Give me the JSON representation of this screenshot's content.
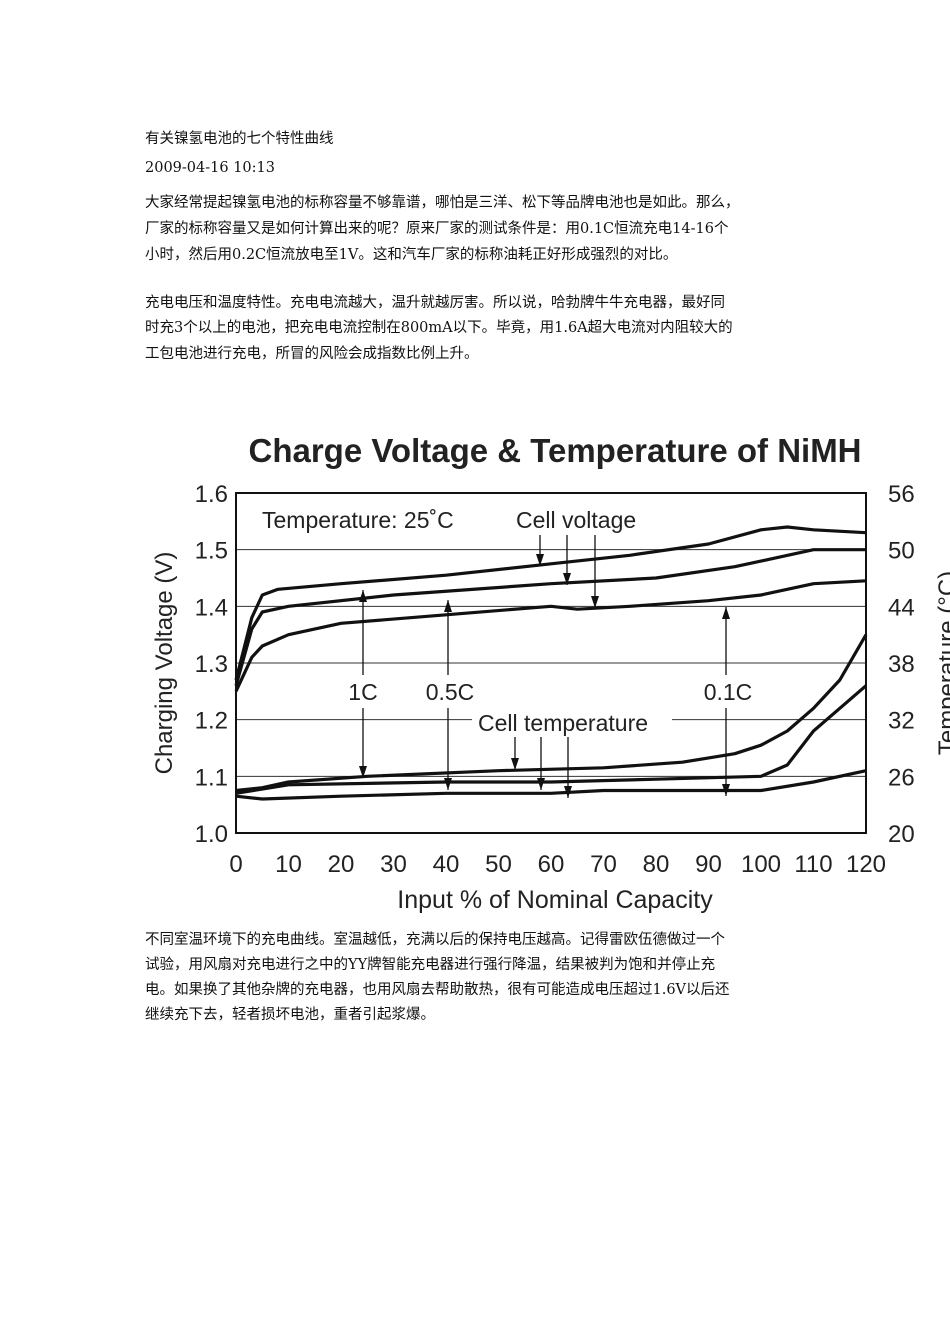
{
  "article": {
    "title": "有关镍氢电池的七个特性曲线",
    "date": "2009-04-16 10:13",
    "paragraph1": [
      "大家经常提起镍氢电池的标称容量不够靠谱，哪怕是三洋、松下等品牌电池也是如此。那么，",
      "厂家的标称容量又是如何计算出来的呢？原来厂家的测试条件是：用0.1C恒流充电14-16个",
      "小时，然后用0.2C恒流放电至1V。这和汽车厂家的标称油耗正好形成强烈的对比。"
    ],
    "paragraph2": [
      "充电电压和温度特性。充电电流越大，温升就越厉害。所以说，哈勃牌牛牛充电器，最好同",
      "时充3个以上的电池，把充电电流控制在800mA以下。毕竟，用1.6A超大电流对内阻较大的",
      "工包电池进行充电，所冒的风险会成指数比例上升。"
    ],
    "paragraph3": [
      "不同室温环境下的充电曲线。室温越低，充满以后的保持电压越高。记得雷欧伍德做过一个",
      "试验，用风扇对充电进行之中的YY牌智能充电器进行强行降温，结果被判为饱和并停止充",
      "电。如果换了其他杂牌的充电器，也用风扇去帮助散热，很有可能造成电压超过1.6V以后还",
      "继续充下去，轻者损坏电池，重者引起浆爆。"
    ]
  },
  "chart_data": {
    "type": "line",
    "title": "Charge Voltage & Temperature of NiMH",
    "xlabel": "Input % of Nominal Capacity",
    "ylabel": "Charging Voltage (V)",
    "y2label": "Temperature (°C)",
    "xlim": [
      0,
      120
    ],
    "ylim": [
      1.0,
      1.6
    ],
    "y2lim": [
      20,
      56
    ],
    "xticks": [
      "0",
      "10",
      "20",
      "30",
      "40",
      "50",
      "60",
      "70",
      "80",
      "90",
      "100",
      "110",
      "120"
    ],
    "yticks": [
      "1.0",
      "1.1",
      "1.2",
      "1.3",
      "1.4",
      "1.5",
      "1.6"
    ],
    "y2ticks": [
      "20",
      "26",
      "32",
      "38",
      "44",
      "50",
      "56"
    ],
    "grid": "horizontal",
    "annotations": {
      "condition": "Temperature: 25˚C",
      "cell_voltage": "Cell voltage",
      "cell_temperature": "Cell temperature",
      "rate_1c": "1C",
      "rate_05c": "0.5C",
      "rate_01c": "0.1C"
    },
    "voltage_series": [
      {
        "rate": "1C",
        "x": [
          0,
          3,
          5,
          8,
          20,
          40,
          60,
          75,
          90,
          100,
          105,
          110,
          120
        ],
        "y": [
          1.27,
          1.38,
          1.42,
          1.43,
          1.44,
          1.455,
          1.475,
          1.49,
          1.51,
          1.535,
          1.54,
          1.535,
          1.53
        ]
      },
      {
        "rate": "0.5C",
        "x": [
          0,
          3,
          5,
          10,
          30,
          60,
          80,
          95,
          110,
          120
        ],
        "y": [
          1.26,
          1.36,
          1.39,
          1.4,
          1.42,
          1.44,
          1.45,
          1.47,
          1.5,
          1.5
        ]
      },
      {
        "rate": "0.1C",
        "x": [
          0,
          3,
          5,
          10,
          20,
          40,
          60,
          65,
          75,
          90,
          100,
          110,
          120
        ],
        "y": [
          1.25,
          1.31,
          1.33,
          1.35,
          1.37,
          1.385,
          1.4,
          1.395,
          1.4,
          1.41,
          1.42,
          1.44,
          1.445
        ]
      }
    ],
    "temperature_series": [
      {
        "rate": "1C",
        "x": [
          0,
          5,
          10,
          25,
          50,
          70,
          85,
          95,
          100,
          105,
          110,
          115,
          120
        ],
        "y": [
          24.5,
          24.8,
          25.4,
          26,
          26.6,
          26.9,
          27.5,
          28.4,
          29.3,
          30.8,
          33.2,
          36.2,
          41
        ]
      },
      {
        "rate": "0.5C",
        "x": [
          0,
          10,
          40,
          60,
          80,
          100,
          105,
          110,
          115,
          120
        ],
        "y": [
          24.2,
          25.1,
          25.4,
          25.4,
          25.7,
          26,
          27.2,
          30.8,
          33.2,
          35.6
        ]
      },
      {
        "rate": "0.1C",
        "x": [
          0,
          5,
          20,
          40,
          60,
          70,
          100,
          110,
          120
        ],
        "y": [
          23.9,
          23.6,
          23.9,
          24.2,
          24.2,
          24.5,
          24.5,
          25.4,
          26.6
        ]
      }
    ],
    "line_color": "#111111"
  }
}
